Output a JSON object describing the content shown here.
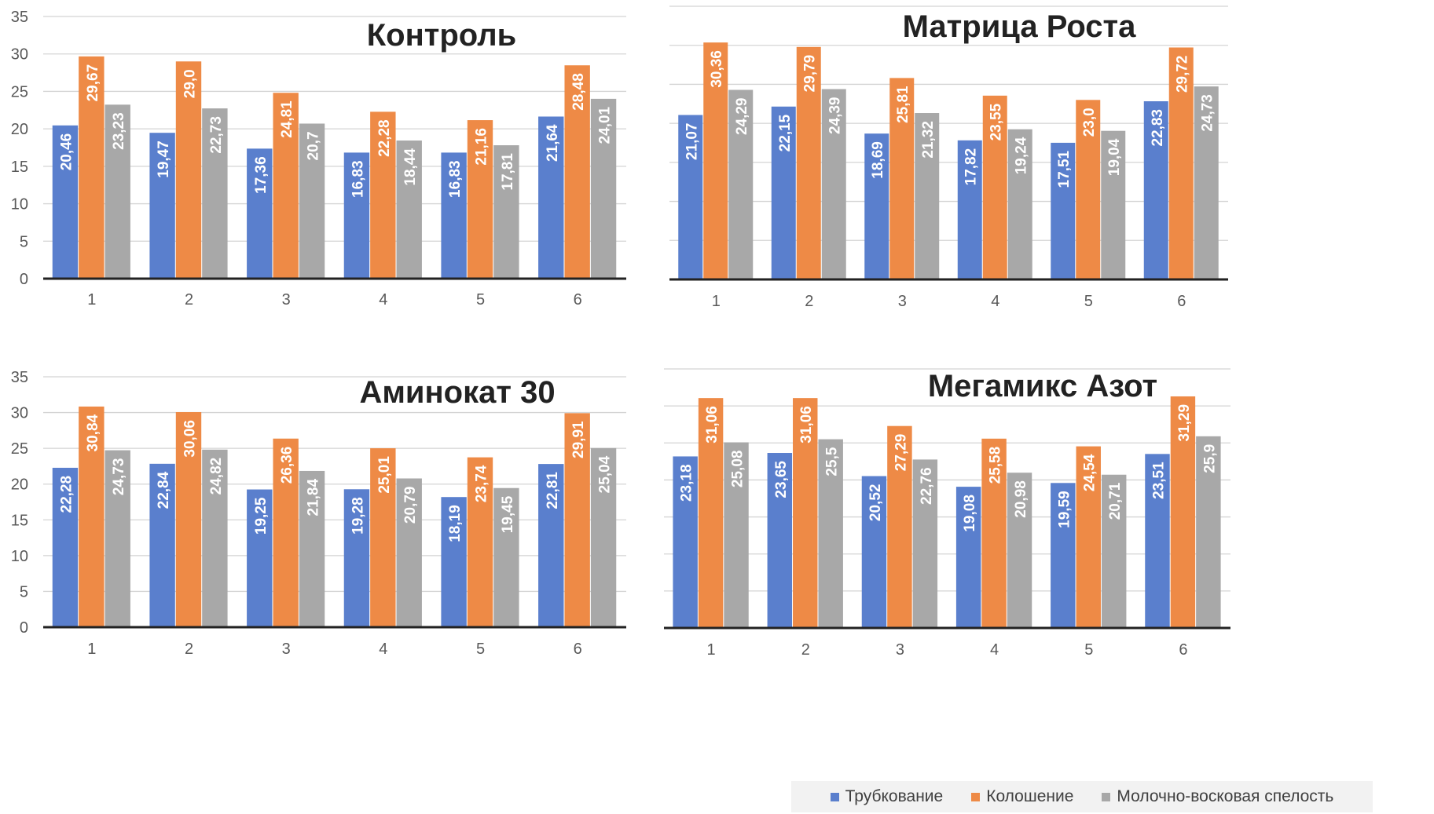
{
  "colors": {
    "series": [
      "#5a7fcd",
      "#ee8a46",
      "#a8a8a8"
    ],
    "grid": "#d4d4d4",
    "axis": "#222222",
    "tick_text": "#595959",
    "title_text": "#222222",
    "label_text": "#ffffff"
  },
  "legend": {
    "position": "bottom-right",
    "items": [
      "Трубкование",
      "Колошение",
      "Молочно-восковая спелость"
    ]
  },
  "chart_data": [
    {
      "type": "bar",
      "title": "Контроль",
      "categories": [
        "1",
        "2",
        "3",
        "4",
        "5",
        "6"
      ],
      "ylim": [
        0,
        35
      ],
      "yticks": [
        "0",
        "5",
        "10",
        "15",
        "20",
        "25",
        "30",
        "35"
      ],
      "show_y_labels": true,
      "grid": true,
      "series": [
        {
          "name": "Трубкование",
          "values": [
            20.46,
            19.47,
            17.36,
            16.83,
            16.83,
            21.64
          ],
          "labels": [
            "20,46",
            "19,47",
            "17,36",
            "16,83",
            "16,83",
            "21,64"
          ]
        },
        {
          "name": "Колошение",
          "values": [
            29.67,
            29.0,
            24.81,
            22.28,
            21.16,
            28.48
          ],
          "labels": [
            "29,67",
            "29,0",
            "24,81",
            "22,28",
            "21,16",
            "28,48"
          ]
        },
        {
          "name": "Молочно-восковая спелость",
          "values": [
            23.23,
            22.73,
            20.7,
            18.44,
            17.81,
            24.01
          ],
          "labels": [
            "23,23",
            "22,73",
            "20,7",
            "18,44",
            "17,81",
            "24,01"
          ]
        }
      ]
    },
    {
      "type": "bar",
      "title": "Матрица Роста",
      "categories": [
        "1",
        "2",
        "3",
        "4",
        "5",
        "6"
      ],
      "ylim": [
        0,
        35
      ],
      "yticks": [],
      "show_y_labels": false,
      "grid": true,
      "series": [
        {
          "name": "Трубкование",
          "values": [
            21.07,
            22.15,
            18.69,
            17.82,
            17.51,
            22.83
          ],
          "labels": [
            "21,07",
            "22,15",
            "18,69",
            "17,82",
            "17,51",
            "22,83"
          ]
        },
        {
          "name": "Колошение",
          "values": [
            30.36,
            29.79,
            25.81,
            23.55,
            23.0,
            29.72
          ],
          "labels": [
            "30,36",
            "29,79",
            "25,81",
            "23,55",
            "23,0",
            "29,72"
          ]
        },
        {
          "name": "Молочно-восковая спелость",
          "values": [
            24.29,
            24.39,
            21.32,
            19.24,
            19.04,
            24.73
          ],
          "labels": [
            "24,29",
            "24,39",
            "21,32",
            "19,24",
            "19,04",
            "24,73"
          ]
        }
      ]
    },
    {
      "type": "bar",
      "title": "Аминокат 30",
      "categories": [
        "1",
        "2",
        "3",
        "4",
        "5",
        "6"
      ],
      "ylim": [
        0,
        35
      ],
      "yticks": [
        "0",
        "5",
        "10",
        "15",
        "20",
        "25",
        "30",
        "35"
      ],
      "show_y_labels": true,
      "grid": true,
      "series": [
        {
          "name": "Трубкование",
          "values": [
            22.28,
            22.84,
            19.25,
            19.28,
            18.19,
            22.81
          ],
          "labels": [
            "22,28",
            "22,84",
            "19,25",
            "19,28",
            "18,19",
            "22,81"
          ]
        },
        {
          "name": "Колошение",
          "values": [
            30.84,
            30.06,
            26.36,
            25.01,
            23.74,
            29.91
          ],
          "labels": [
            "30,84",
            "30,06",
            "26,36",
            "25,01",
            "23,74",
            "29,91"
          ]
        },
        {
          "name": "Молочно-восковая спелость",
          "values": [
            24.73,
            24.82,
            21.84,
            20.79,
            19.45,
            25.04
          ],
          "labels": [
            "24,73",
            "24,82",
            "21,84",
            "20,79",
            "19,45",
            "25,04"
          ]
        }
      ]
    },
    {
      "type": "bar",
      "title": "Мегамикс Азот",
      "categories": [
        "1",
        "2",
        "3",
        "4",
        "5",
        "6"
      ],
      "ylim": [
        0,
        35
      ],
      "yticks": [],
      "show_y_labels": false,
      "grid": true,
      "series": [
        {
          "name": "Трубкование",
          "values": [
            23.18,
            23.65,
            20.52,
            19.08,
            19.59,
            23.51
          ],
          "labels": [
            "23,18",
            "23,65",
            "20,52",
            "19,08",
            "19,59",
            "23,51"
          ]
        },
        {
          "name": "Колошение",
          "values": [
            31.06,
            31.06,
            27.29,
            25.58,
            24.54,
            31.29
          ],
          "labels": [
            "31,06",
            "31,06",
            "27,29",
            "25,58",
            "24,54",
            "31,29"
          ]
        },
        {
          "name": "Молочно-восковая спелость",
          "values": [
            25.08,
            25.5,
            22.76,
            20.98,
            20.71,
            25.9
          ],
          "labels": [
            "25,08",
            "25,5",
            "22,76",
            "20,98",
            "20,71",
            "25,9"
          ]
        }
      ]
    }
  ]
}
